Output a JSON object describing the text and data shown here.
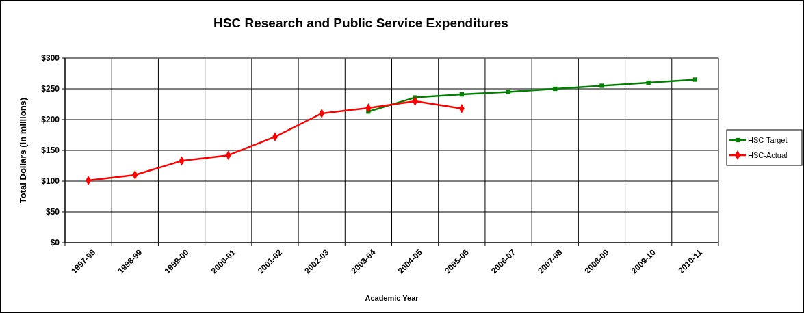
{
  "chart_data": {
    "type": "line",
    "title": "HSC Research and Public Service Expenditures",
    "xlabel": "Academic Year",
    "ylabel": "Total Dollars (in millions)",
    "categories": [
      "1997-98",
      "1998-99",
      "1999-00",
      "2000-01",
      "2001-02",
      "2002-03",
      "2003-04",
      "2004-05",
      "2005-06",
      "2006-07",
      "2007-08",
      "2008-09",
      "2009-10",
      "2010-11"
    ],
    "series": [
      {
        "name": "HSC-Target",
        "color": "#008000",
        "marker": "square",
        "values": [
          null,
          null,
          null,
          null,
          null,
          null,
          213,
          236,
          241,
          245,
          250,
          255,
          260,
          265
        ]
      },
      {
        "name": "HSC-Actual",
        "color": "#ff0000",
        "marker": "diamond",
        "values": [
          101,
          110,
          133,
          142,
          172,
          210,
          219,
          230,
          218,
          null,
          null,
          null,
          null,
          null
        ]
      }
    ],
    "ylim": [
      0,
      300
    ],
    "yticks": [
      {
        "value": 0,
        "label": "$0"
      },
      {
        "value": 50,
        "label": "$50"
      },
      {
        "value": 100,
        "label": "$100"
      },
      {
        "value": 150,
        "label": "$150"
      },
      {
        "value": 200,
        "label": "$200"
      },
      {
        "value": 250,
        "label": "$250"
      },
      {
        "value": 300,
        "label": "$300"
      }
    ],
    "grid": true,
    "legend": "right"
  }
}
